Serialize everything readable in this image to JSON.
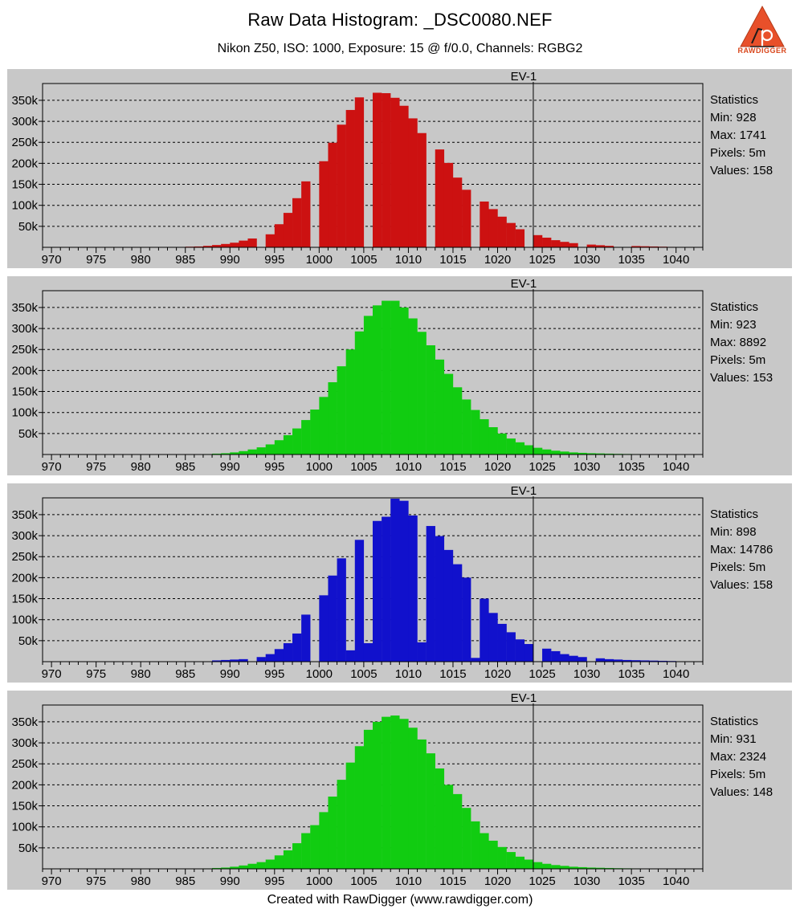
{
  "title": "Raw Data Histogram: _DSC0080.NEF",
  "subtitle": "Nikon Z50, ISO: 1000, Exposure: 15 @ f/0.0, Channels: RGBG2",
  "footer": "Created with RawDigger (www.rawdigger.com)",
  "logo": {
    "text": "RAWDIGGER",
    "color": "#d9471c"
  },
  "chart_data": [
    {
      "type": "bar",
      "channel": "R",
      "color": "#cc1111",
      "marker_label": "EV-1",
      "marker_x": 1024,
      "xlim": [
        969,
        1043
      ],
      "ylim": [
        0,
        390000
      ],
      "xticks": [
        970,
        975,
        980,
        985,
        990,
        995,
        1000,
        1005,
        1010,
        1015,
        1020,
        1025,
        1030,
        1035,
        1040
      ],
      "yticks": [
        50000,
        100000,
        150000,
        200000,
        250000,
        300000,
        350000
      ],
      "ytick_labels": [
        "50k",
        "100k",
        "150k",
        "200k",
        "250k",
        "300k",
        "350k"
      ],
      "x": [
        985,
        986,
        987,
        988,
        989,
        990,
        991,
        992,
        993,
        994,
        995,
        996,
        997,
        998,
        999,
        1000,
        1001,
        1002,
        1003,
        1004,
        1005,
        1006,
        1007,
        1008,
        1009,
        1010,
        1011,
        1012,
        1013,
        1014,
        1015,
        1016,
        1017,
        1018,
        1019,
        1020,
        1021,
        1022,
        1023,
        1024,
        1025,
        1026,
        1027,
        1028,
        1029,
        1030,
        1031,
        1032,
        1033,
        1034,
        1035,
        1036,
        1037,
        1038,
        1039,
        1040
      ],
      "values": [
        1500,
        2000,
        3500,
        5500,
        8000,
        11000,
        16000,
        21000,
        0,
        31000,
        55000,
        82000,
        117000,
        157000,
        0,
        205000,
        249000,
        292000,
        327000,
        357000,
        0,
        368000,
        367000,
        356000,
        337000,
        307000,
        272000,
        0,
        233000,
        201000,
        166000,
        137000,
        0,
        109000,
        91000,
        73000,
        58000,
        43000,
        0,
        29000,
        23000,
        17000,
        13000,
        10000,
        0,
        6500,
        5000,
        3500,
        0,
        0,
        3000,
        2500,
        2000,
        1500,
        1000,
        0
      ],
      "stats": [
        "Statistics",
        "Min: 928",
        "Max: 1741",
        "Pixels: 5m",
        "Values: 158"
      ]
    },
    {
      "type": "bar",
      "channel": "G",
      "color": "#11cc11",
      "marker_label": "EV-1",
      "marker_x": 1024,
      "xlim": [
        969,
        1043
      ],
      "ylim": [
        0,
        390000
      ],
      "xticks": [
        970,
        975,
        980,
        985,
        990,
        995,
        1000,
        1005,
        1010,
        1015,
        1020,
        1025,
        1030,
        1035,
        1040
      ],
      "yticks": [
        50000,
        100000,
        150000,
        200000,
        250000,
        300000,
        350000
      ],
      "ytick_labels": [
        "50k",
        "100k",
        "150k",
        "200k",
        "250k",
        "300k",
        "350k"
      ],
      "x": [
        987,
        988,
        989,
        990,
        991,
        992,
        993,
        994,
        995,
        996,
        997,
        998,
        999,
        1000,
        1001,
        1002,
        1003,
        1004,
        1005,
        1006,
        1007,
        1008,
        1009,
        1010,
        1011,
        1012,
        1013,
        1014,
        1015,
        1016,
        1017,
        1018,
        1019,
        1020,
        1021,
        1022,
        1023,
        1024,
        1025,
        1026,
        1027,
        1028,
        1029,
        1030,
        1031,
        1032,
        1033,
        1034,
        1035,
        1036,
        1037
      ],
      "values": [
        1000,
        2000,
        3000,
        5000,
        8000,
        12000,
        17000,
        24000,
        34000,
        46000,
        62000,
        82000,
        107000,
        137000,
        172000,
        210000,
        250000,
        293000,
        330000,
        355000,
        366000,
        366000,
        350000,
        324000,
        292000,
        260000,
        226000,
        192000,
        160000,
        131000,
        106000,
        84000,
        65000,
        50000,
        38000,
        29000,
        22000,
        16000,
        12000,
        9000,
        7000,
        5000,
        4000,
        3000,
        2500,
        2000,
        1500,
        1200,
        1000,
        800,
        600
      ],
      "stats": [
        "Statistics",
        "Min: 923",
        "Max: 8892",
        "Pixels: 5m",
        "Values: 153"
      ]
    },
    {
      "type": "bar",
      "channel": "B",
      "color": "#1111cc",
      "marker_label": "EV-1",
      "marker_x": 1024,
      "xlim": [
        969,
        1043
      ],
      "ylim": [
        0,
        390000
      ],
      "xticks": [
        970,
        975,
        980,
        985,
        990,
        995,
        1000,
        1005,
        1010,
        1015,
        1020,
        1025,
        1030,
        1035,
        1040
      ],
      "yticks": [
        50000,
        100000,
        150000,
        200000,
        250000,
        300000,
        350000
      ],
      "ytick_labels": [
        "50k",
        "100k",
        "150k",
        "200k",
        "250k",
        "300k",
        "350k"
      ],
      "x": [
        988,
        989,
        990,
        991,
        992,
        993,
        994,
        995,
        996,
        997,
        998,
        999,
        1000,
        1001,
        1002,
        1003,
        1004,
        1005,
        1006,
        1007,
        1008,
        1009,
        1010,
        1011,
        1012,
        1013,
        1014,
        1015,
        1016,
        1017,
        1018,
        1019,
        1020,
        1021,
        1022,
        1023,
        1024,
        1025,
        1026,
        1027,
        1028,
        1029,
        1030,
        1031,
        1032,
        1033,
        1034,
        1035,
        1036,
        1037,
        1038,
        1039,
        1040
      ],
      "values": [
        3000,
        4000,
        5000,
        6000,
        0,
        11000,
        18000,
        30000,
        44000,
        67000,
        112000,
        0,
        158000,
        205000,
        246000,
        27000,
        290000,
        44000,
        335000,
        345000,
        388000,
        383000,
        348000,
        46000,
        323000,
        299000,
        266000,
        232000,
        200000,
        9000,
        150000,
        116000,
        90000,
        70000,
        53000,
        42000,
        0,
        31000,
        25000,
        18000,
        14000,
        11000,
        0,
        8000,
        6000,
        5000,
        4000,
        3500,
        3000,
        2500,
        2000,
        1500,
        500
      ],
      "stats": [
        "Statistics",
        "Min: 898",
        "Max: 14786",
        "Pixels: 5m",
        "Values: 158"
      ]
    },
    {
      "type": "bar",
      "channel": "G2",
      "color": "#11cc11",
      "marker_label": "EV-1",
      "marker_x": 1024,
      "xlim": [
        969,
        1043
      ],
      "ylim": [
        0,
        390000
      ],
      "xticks": [
        970,
        975,
        980,
        985,
        990,
        995,
        1000,
        1005,
        1010,
        1015,
        1020,
        1025,
        1030,
        1035,
        1040
      ],
      "yticks": [
        50000,
        100000,
        150000,
        200000,
        250000,
        300000,
        350000
      ],
      "ytick_labels": [
        "50k",
        "100k",
        "150k",
        "200k",
        "250k",
        "300k",
        "350k"
      ],
      "x": [
        987,
        988,
        989,
        990,
        991,
        992,
        993,
        994,
        995,
        996,
        997,
        998,
        999,
        1000,
        1001,
        1002,
        1003,
        1004,
        1005,
        1006,
        1007,
        1008,
        1009,
        1010,
        1011,
        1012,
        1013,
        1014,
        1015,
        1016,
        1017,
        1018,
        1019,
        1020,
        1021,
        1022,
        1023,
        1024,
        1025,
        1026,
        1027,
        1028,
        1029,
        1030,
        1031,
        1032,
        1033,
        1034,
        1035,
        1036,
        1037
      ],
      "values": [
        1000,
        2000,
        3000,
        5000,
        8000,
        12000,
        16000,
        22000,
        32000,
        44000,
        61000,
        85000,
        104000,
        135000,
        172000,
        212000,
        253000,
        292000,
        331000,
        350000,
        362000,
        365000,
        357000,
        336000,
        308000,
        275000,
        239000,
        200000,
        178000,
        145000,
        113000,
        85000,
        67000,
        52000,
        40000,
        29000,
        22000,
        16000,
        12000,
        9000,
        7000,
        5000,
        4000,
        3000,
        2500,
        2000,
        1500,
        1200,
        1000,
        800,
        600
      ],
      "stats": [
        "Statistics",
        "Min: 931",
        "Max: 2324",
        "Pixels: 5m",
        "Values: 148"
      ]
    }
  ]
}
